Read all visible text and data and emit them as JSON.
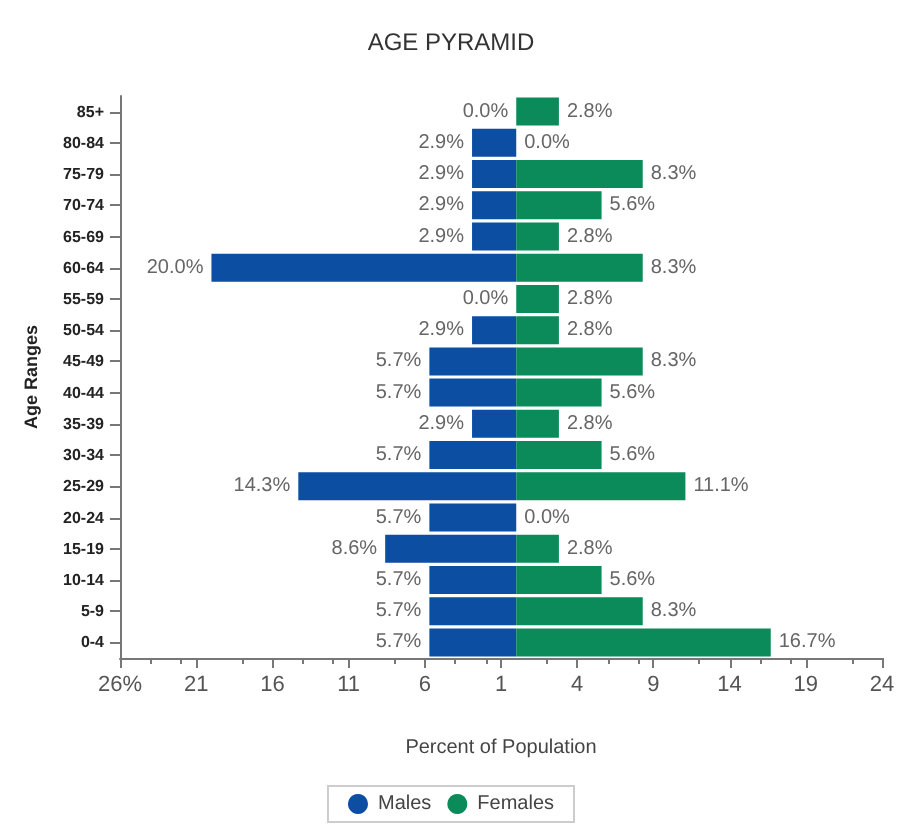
{
  "chart_data": {
    "type": "bar",
    "orientation": "horizontal",
    "title": "AGE PYRAMID",
    "xlabel": "Percent of Population",
    "ylabel": "Age Ranges",
    "categories": [
      "85+",
      "80-84",
      "75-79",
      "70-74",
      "65-69",
      "60-64",
      "55-59",
      "50-54",
      "45-49",
      "40-44",
      "35-39",
      "30-34",
      "25-29",
      "20-24",
      "15-19",
      "10-14",
      "5-9",
      "0-4"
    ],
    "series": [
      {
        "name": "Males",
        "color": "#0b4ea2",
        "base": [
          null,
          -2.9,
          -2.9,
          -2.9,
          -2.9,
          -20.0,
          null,
          -2.9,
          -5.7,
          -5.7,
          -2.9,
          -5.7,
          -14.3,
          -5.7,
          -8.6,
          -5.7,
          -5.7,
          -5.7
        ],
        "values": [
          0,
          2.9,
          2.9,
          2.9,
          2.9,
          20.0,
          0,
          2.9,
          5.7,
          5.7,
          2.9,
          5.7,
          14.3,
          5.7,
          8.6,
          5.7,
          5.7,
          5.7
        ],
        "value_labels": [
          "0.0%",
          "2.9%",
          "2.9%",
          "2.9%",
          "2.9%",
          "20.0%",
          "0.0%",
          "2.9%",
          "5.7%",
          "5.7%",
          "2.9%",
          "5.7%",
          "14.3%",
          "5.7%",
          "8.6%",
          "5.7%",
          "5.7%",
          "5.7%"
        ]
      },
      {
        "name": "Females",
        "color": "#0b8a5a",
        "values": [
          2.8,
          0,
          8.3,
          5.6,
          2.8,
          8.3,
          2.8,
          2.8,
          8.3,
          5.6,
          2.8,
          5.6,
          11.1,
          0,
          2.8,
          5.6,
          8.3,
          16.7
        ],
        "value_labels": [
          "2.8%",
          "0.0%",
          "8.3%",
          "5.6%",
          "2.8%",
          "8.3%",
          "2.8%",
          "2.8%",
          "8.3%",
          "5.6%",
          "2.8%",
          "5.6%",
          "11.1%",
          "0.0%",
          "2.8%",
          "5.6%",
          "8.3%",
          "16.7%"
        ]
      }
    ],
    "xlim": [
      -26,
      24
    ],
    "xticks": [
      {
        "value": -26,
        "label": "26%"
      },
      {
        "value": -21,
        "label": "21"
      },
      {
        "value": -16,
        "label": "16"
      },
      {
        "value": -11,
        "label": "11"
      },
      {
        "value": -6,
        "label": "6"
      },
      {
        "value": -1,
        "label": "1"
      },
      4,
      9,
      14,
      19,
      24
    ],
    "grid": false,
    "legend": "bottom"
  }
}
